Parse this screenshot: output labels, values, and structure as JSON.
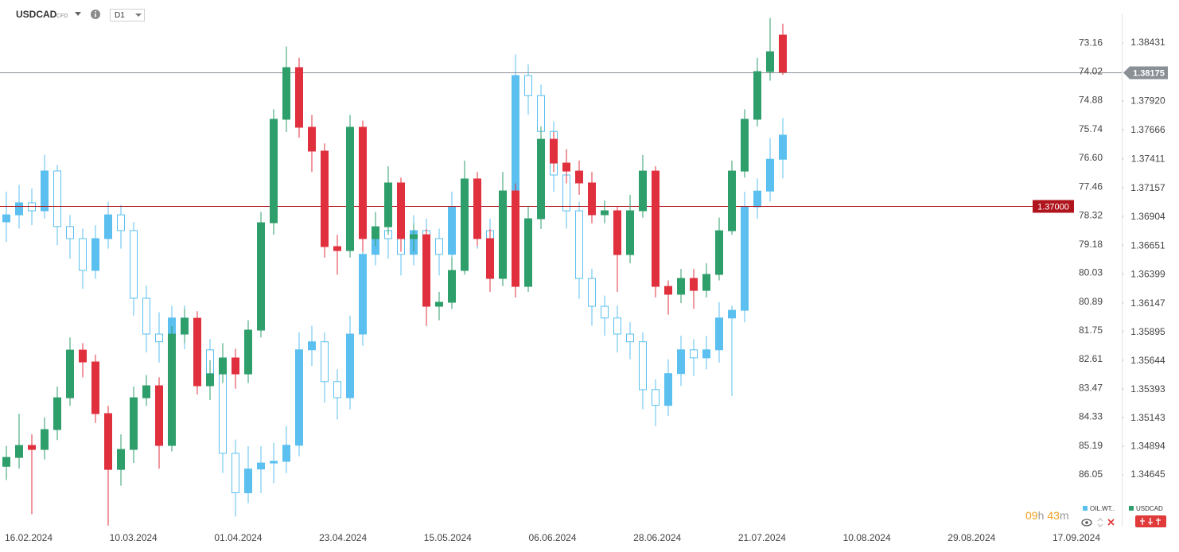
{
  "header": {
    "symbol": "USDCAD",
    "kind": "CFD",
    "interval": "D1"
  },
  "countdown": {
    "hours": "09",
    "hours_unit": "h",
    "minutes": "43",
    "minutes_unit": "m"
  },
  "chart_data": {
    "type": "candlestick",
    "x_labels": [
      "16.02.2024",
      "10.03.2024",
      "01.04.2024",
      "23.04.2024",
      "15.05.2024",
      "06.06.2024",
      "28.06.2024",
      "21.07.2024",
      "10.08.2024",
      "29.08.2024",
      "17.09.2024"
    ],
    "ylim": [
      1.34206,
      1.38668
    ],
    "yticks": [
      1.38431,
      {
        "value": 1.3792,
        "label": "1.37920"
      },
      1.37666,
      1.37411,
      1.37157,
      1.36904,
      1.36651,
      1.36399,
      1.36147,
      1.35895,
      1.35644,
      1.35393,
      1.35143,
      1.34894,
      1.34645
    ],
    "y2lim": [
      87.55,
      72.35
    ],
    "y2ticks": [
      73.16,
      74.02,
      74.88,
      75.74,
      {
        "value": 76.6,
        "label": "76.60"
      },
      77.46,
      78.32,
      79.18,
      80.03,
      80.89,
      81.75,
      82.61,
      83.47,
      84.33,
      85.19,
      86.05
    ],
    "price_lines": [
      {
        "value": 1.38175,
        "color": "#8a9096"
      },
      {
        "value": {
          "value": 1.37,
          "label": "1.37000"
        },
        "color": "#b0141c"
      }
    ],
    "series": [
      {
        "name": "OIL.WT..",
        "axis": "y2",
        "color": "#5bc0f0",
        "ohlc": [
          [
            78.5,
            79.1,
            77.6,
            78.29
          ],
          [
            78.29,
            78.7,
            77.4,
            77.93
          ],
          [
            77.93,
            78.6,
            77.5,
            78.17
          ],
          [
            78.17,
            78.4,
            76.5,
            76.98
          ],
          [
            76.98,
            79.2,
            76.8,
            78.64
          ],
          [
            78.64,
            79.6,
            78.3,
            79.0
          ],
          [
            79.0,
            80.5,
            78.7,
            79.95
          ],
          [
            79.95,
            80.2,
            78.6,
            79.0
          ],
          [
            79.0,
            79.3,
            77.9,
            78.29
          ],
          [
            78.29,
            79.3,
            78.0,
            78.76
          ],
          [
            78.76,
            81.3,
            78.5,
            80.78
          ],
          [
            80.78,
            82.4,
            80.4,
            81.85
          ],
          [
            81.85,
            82.7,
            81.2,
            82.08
          ],
          [
            82.08,
            82.4,
            81.0,
            81.37
          ],
          [
            81.37,
            82.3,
            81.0,
            81.85
          ],
          [
            81.85,
            83.0,
            81.5,
            82.32
          ],
          [
            82.32,
            83.8,
            82.0,
            83.03
          ],
          [
            83.03,
            86.0,
            82.7,
            85.41
          ],
          [
            85.41,
            87.3,
            85.0,
            86.59
          ],
          [
            86.59,
            86.9,
            85.2,
            85.88
          ],
          [
            85.88,
            86.6,
            85.2,
            85.7
          ],
          [
            85.7,
            86.3,
            85.1,
            85.65
          ],
          [
            85.65,
            86.0,
            84.6,
            85.17
          ],
          [
            85.17,
            85.5,
            81.8,
            82.32
          ],
          [
            82.32,
            82.8,
            81.6,
            82.08
          ],
          [
            82.08,
            83.9,
            81.8,
            83.27
          ],
          [
            83.27,
            84.4,
            82.9,
            83.75
          ],
          [
            83.75,
            84.1,
            81.3,
            81.85
          ],
          [
            81.85,
            82.2,
            78.9,
            79.47
          ],
          [
            79.47,
            79.8,
            78.2,
            78.76
          ],
          [
            78.76,
            79.6,
            78.4,
            79.0
          ],
          [
            79.0,
            80.1,
            78.7,
            79.47
          ],
          [
            79.47,
            79.8,
            78.3,
            78.76
          ],
          [
            78.76,
            79.6,
            78.4,
            79.0
          ],
          [
            79.0,
            80.1,
            78.7,
            79.47
          ],
          [
            79.47,
            79.8,
            77.6,
            78.05
          ],
          [
            78.05,
            78.4,
            77.1,
            77.58
          ],
          [
            77.58,
            79.3,
            77.3,
            78.76
          ],
          [
            78.76,
            79.6,
            78.4,
            79.0
          ],
          [
            79.0,
            79.3,
            77.3,
            77.81
          ],
          [
            77.81,
            78.1,
            73.5,
            74.13
          ],
          [
            74.13,
            75.3,
            73.8,
            74.73
          ],
          [
            74.73,
            76.3,
            74.4,
            75.8
          ],
          [
            75.8,
            77.6,
            75.5,
            77.1
          ],
          [
            77.1,
            78.7,
            76.8,
            78.17
          ],
          [
            78.17,
            80.8,
            77.9,
            80.19
          ],
          [
            80.19,
            81.6,
            79.9,
            81.02
          ],
          [
            81.02,
            81.9,
            80.7,
            81.37
          ],
          [
            81.37,
            82.4,
            81.0,
            81.85
          ],
          [
            81.85,
            82.6,
            81.5,
            82.08
          ],
          [
            82.08,
            84.1,
            81.8,
            83.51
          ],
          [
            83.51,
            84.6,
            83.2,
            83.98
          ],
          [
            83.98,
            84.3,
            82.6,
            83.03
          ],
          [
            83.03,
            83.4,
            81.9,
            82.32
          ],
          [
            82.32,
            83.1,
            82.0,
            82.56
          ],
          [
            82.56,
            82.9,
            81.9,
            82.32
          ],
          [
            82.32,
            82.7,
            80.9,
            81.37
          ],
          [
            81.37,
            83.7,
            81.0,
            81.14
          ],
          [
            81.14,
            81.5,
            77.6,
            78.05
          ],
          [
            78.05,
            78.4,
            77.2,
            77.58
          ],
          [
            77.58,
            77.9,
            76.0,
            76.63
          ],
          [
            76.63,
            77.2,
            75.4,
            75.91
          ]
        ]
      },
      {
        "name": "USDCAD",
        "axis": "y",
        "color": "#2e9e6b",
        "color_down": "#e0303e",
        "ohlc": [
          [
            1.3472,
            1.349,
            1.346,
            1.34798
          ],
          [
            1.34798,
            1.3518,
            1.347,
            1.34903
          ],
          [
            1.34903,
            1.35,
            1.343,
            1.34868
          ],
          [
            1.34868,
            1.3515,
            1.3478,
            1.35042
          ],
          [
            1.35042,
            1.3542,
            1.3495,
            1.35321
          ],
          [
            1.35321,
            1.3585,
            1.3525,
            1.35739
          ],
          [
            1.35739,
            1.358,
            1.355,
            1.35635
          ],
          [
            1.35635,
            1.357,
            1.351,
            1.35182
          ],
          [
            1.35182,
            1.3525,
            1.342,
            1.34693
          ],
          [
            1.34693,
            1.35,
            1.3455,
            1.34868
          ],
          [
            1.34868,
            1.3542,
            1.3475,
            1.35321
          ],
          [
            1.35321,
            1.3552,
            1.3525,
            1.35426
          ],
          [
            1.35426,
            1.355,
            1.347,
            1.34903
          ],
          [
            1.34903,
            1.3595,
            1.3485,
            1.35879
          ],
          [
            1.35879,
            1.361,
            1.358,
            1.36018
          ],
          [
            1.36018,
            1.3608,
            1.3535,
            1.35426
          ],
          [
            1.35426,
            1.3565,
            1.353,
            1.3553
          ],
          [
            1.3553,
            1.358,
            1.3545,
            1.3567
          ],
          [
            1.3567,
            1.3575,
            1.354,
            1.3553
          ],
          [
            1.3553,
            1.36,
            1.3545,
            1.35914
          ],
          [
            1.35914,
            1.3695,
            1.3585,
            1.36855
          ],
          [
            1.36855,
            1.3785,
            1.3675,
            1.37762
          ],
          [
            1.37762,
            1.384,
            1.3765,
            1.38215
          ],
          [
            1.38215,
            1.383,
            1.376,
            1.37692
          ],
          [
            1.37692,
            1.378,
            1.373,
            1.37483
          ],
          [
            1.37483,
            1.3755,
            1.3655,
            1.36646
          ],
          [
            1.36646,
            1.3675,
            1.364,
            1.36611
          ],
          [
            1.36611,
            1.378,
            1.3655,
            1.37692
          ],
          [
            1.37692,
            1.3775,
            1.366,
            1.36716
          ],
          [
            1.36716,
            1.3695,
            1.3665,
            1.3682
          ],
          [
            1.3682,
            1.3735,
            1.3675,
            1.37204
          ],
          [
            1.37204,
            1.3725,
            1.366,
            1.36716
          ],
          [
            1.36716,
            1.3685,
            1.366,
            1.3675
          ],
          [
            1.3675,
            1.368,
            1.3595,
            1.36123
          ],
          [
            1.36123,
            1.3625,
            1.36,
            1.36158
          ],
          [
            1.36158,
            1.3655,
            1.361,
            1.36437
          ],
          [
            1.36437,
            1.374,
            1.364,
            1.37239
          ],
          [
            1.37239,
            1.373,
            1.3665,
            1.36716
          ],
          [
            1.36716,
            1.368,
            1.3625,
            1.36367
          ],
          [
            1.36367,
            1.373,
            1.363,
            1.37134
          ],
          [
            1.37134,
            1.372,
            1.362,
            1.36297
          ],
          [
            1.36297,
            1.37,
            1.3625,
            1.3689
          ],
          [
            1.3689,
            1.377,
            1.368,
            1.37587
          ],
          [
            1.37587,
            1.3765,
            1.373,
            1.37378
          ],
          [
            1.37378,
            1.375,
            1.372,
            1.37308
          ],
          [
            1.37308,
            1.374,
            1.371,
            1.37204
          ],
          [
            1.37204,
            1.373,
            1.3685,
            1.36925
          ],
          [
            1.36925,
            1.3705,
            1.3685,
            1.3696
          ],
          [
            1.3696,
            1.37,
            1.3625,
            1.36576
          ],
          [
            1.36576,
            1.371,
            1.365,
            1.3696
          ],
          [
            1.3696,
            1.3745,
            1.369,
            1.37308
          ],
          [
            1.37308,
            1.3735,
            1.362,
            1.36297
          ],
          [
            1.36297,
            1.3635,
            1.3605,
            1.36228
          ],
          [
            1.36228,
            1.3645,
            1.3615,
            1.36367
          ],
          [
            1.36367,
            1.3645,
            1.361,
            1.36262
          ],
          [
            1.36262,
            1.365,
            1.362,
            1.36402
          ],
          [
            1.36402,
            1.369,
            1.3635,
            1.36785
          ],
          [
            1.36785,
            1.374,
            1.3675,
            1.37308
          ],
          [
            1.37308,
            1.3785,
            1.3725,
            1.37762
          ],
          [
            1.37762,
            1.383,
            1.377,
            1.3818
          ],
          [
            1.3818,
            1.3865,
            1.381,
            1.38354
          ],
          [
            1.385,
            1.386,
            1.3815,
            1.38175
          ]
        ]
      }
    ]
  }
}
